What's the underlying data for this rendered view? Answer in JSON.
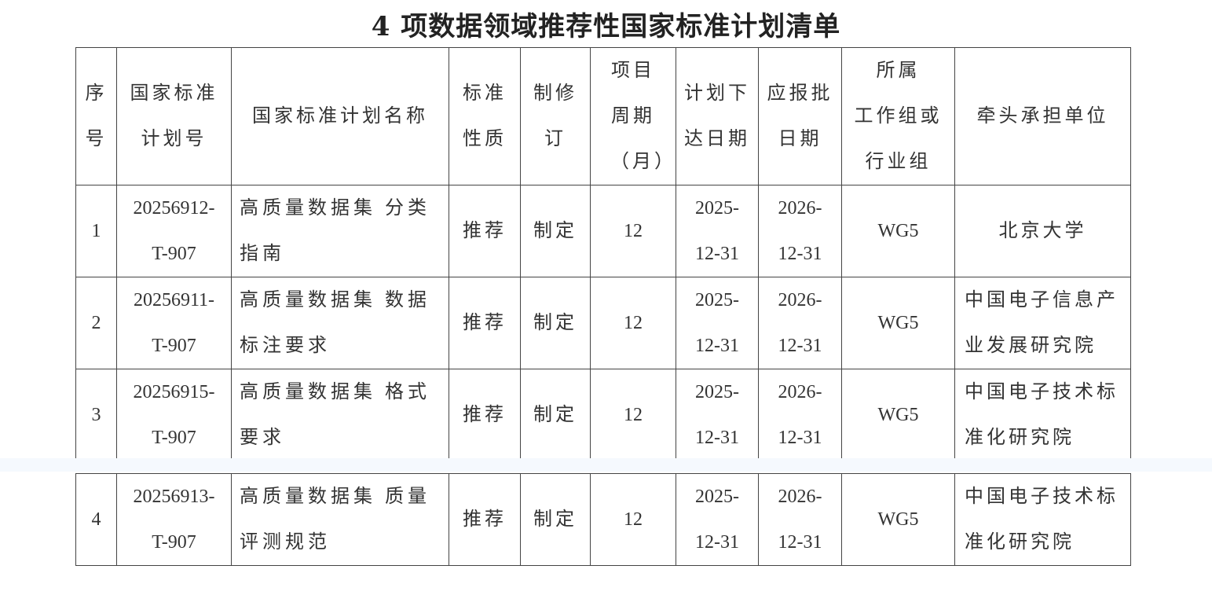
{
  "title": "4 项数据领域推荐性国家标准计划清单",
  "headers": [
    "序号",
    "国家标准计划号",
    "国家标准计划名称",
    "标准性质",
    "制修订",
    "项目周期（月）",
    "计划下达日期",
    "应报批日期",
    "所属工作组或行业组",
    "牵头承担单位"
  ],
  "header_lines": [
    [
      "序",
      "号"
    ],
    [
      "国家标准",
      "计划号"
    ],
    [
      "国家标准计划名称"
    ],
    [
      "标准",
      "性质"
    ],
    [
      "制修",
      "订"
    ],
    [
      "项目",
      "周期",
      "（月）"
    ],
    [
      "计划下",
      "达日期"
    ],
    [
      "应报批",
      "日期"
    ],
    [
      "所属",
      "工作组或",
      "行业组"
    ],
    [
      "牵头承担单位"
    ]
  ],
  "rows": [
    {
      "no": "1",
      "plan_no": [
        "20256912-",
        "T-907"
      ],
      "name": [
        "高质量数据集 分类",
        "指南"
      ],
      "nature": "推荐",
      "type": "制定",
      "period": "12",
      "issue": [
        "2025-",
        "12-31"
      ],
      "approve": [
        "2026-",
        "12-31"
      ],
      "group": "WG5",
      "unit": [
        "北京大学"
      ]
    },
    {
      "no": "2",
      "plan_no": [
        "20256911-",
        "T-907"
      ],
      "name": [
        "高质量数据集 数据",
        "标注要求"
      ],
      "nature": "推荐",
      "type": "制定",
      "period": "12",
      "issue": [
        "2025-",
        "12-31"
      ],
      "approve": [
        "2026-",
        "12-31"
      ],
      "group": "WG5",
      "unit": [
        "中国电子信息产",
        "业发展研究院"
      ]
    },
    {
      "no": "3",
      "plan_no": [
        "20256915-",
        "T-907"
      ],
      "name": [
        "高质量数据集 格式",
        "要求"
      ],
      "nature": "推荐",
      "type": "制定",
      "period": "12",
      "issue": [
        "2025-",
        "12-31"
      ],
      "approve": [
        "2026-",
        "12-31"
      ],
      "group": "WG5",
      "unit": [
        "中国电子技术标",
        "准化研究院"
      ]
    },
    {
      "no": "4",
      "plan_no": [
        "20256913-",
        "T-907"
      ],
      "name": [
        "高质量数据集 质量",
        "评测规范"
      ],
      "nature": "推荐",
      "type": "制定",
      "period": "12",
      "issue": [
        "2025-",
        "12-31"
      ],
      "approve": [
        "2026-",
        "12-31"
      ],
      "group": "WG5",
      "unit": [
        "中国电子技术标",
        "准化研究院"
      ]
    }
  ]
}
